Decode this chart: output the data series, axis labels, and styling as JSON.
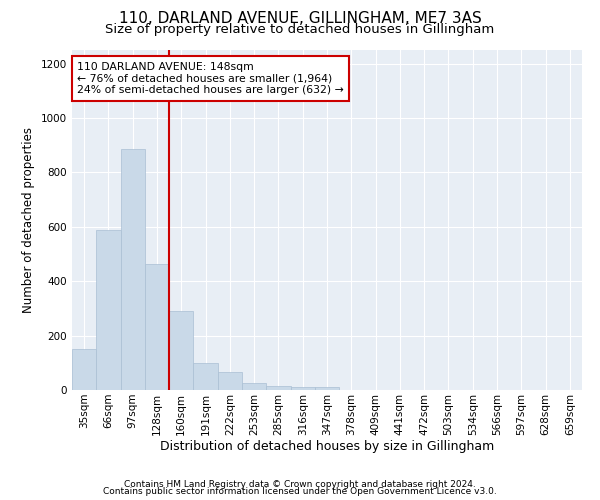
{
  "title": "110, DARLAND AVENUE, GILLINGHAM, ME7 3AS",
  "subtitle": "Size of property relative to detached houses in Gillingham",
  "xlabel": "Distribution of detached houses by size in Gillingham",
  "ylabel": "Number of detached properties",
  "categories": [
    "35sqm",
    "66sqm",
    "97sqm",
    "128sqm",
    "160sqm",
    "191sqm",
    "222sqm",
    "253sqm",
    "285sqm",
    "316sqm",
    "347sqm",
    "378sqm",
    "409sqm",
    "441sqm",
    "472sqm",
    "503sqm",
    "534sqm",
    "566sqm",
    "597sqm",
    "628sqm",
    "659sqm"
  ],
  "values": [
    150,
    590,
    885,
    465,
    290,
    100,
    65,
    25,
    15,
    10,
    10,
    0,
    0,
    0,
    0,
    0,
    0,
    0,
    0,
    0,
    0
  ],
  "bar_color": "#c9d9e8",
  "bar_edge_color": "#aabfd4",
  "vline_pos": 3.5,
  "annotation_line1": "110 DARLAND AVENUE: 148sqm",
  "annotation_line2": "← 76% of detached houses are smaller (1,964)",
  "annotation_line3": "24% of semi-detached houses are larger (632) →",
  "annotation_box_color": "#ffffff",
  "annotation_box_edge": "#cc0000",
  "vline_color": "#cc0000",
  "ylim": [
    0,
    1250
  ],
  "yticks": [
    0,
    200,
    400,
    600,
    800,
    1000,
    1200
  ],
  "footer_line1": "Contains HM Land Registry data © Crown copyright and database right 2024.",
  "footer_line2": "Contains public sector information licensed under the Open Government Licence v3.0.",
  "bg_color": "#e8eef5",
  "title_fontsize": 11,
  "subtitle_fontsize": 9.5,
  "tick_fontsize": 7.5,
  "ylabel_fontsize": 8.5,
  "xlabel_fontsize": 9,
  "footer_fontsize": 6.5
}
